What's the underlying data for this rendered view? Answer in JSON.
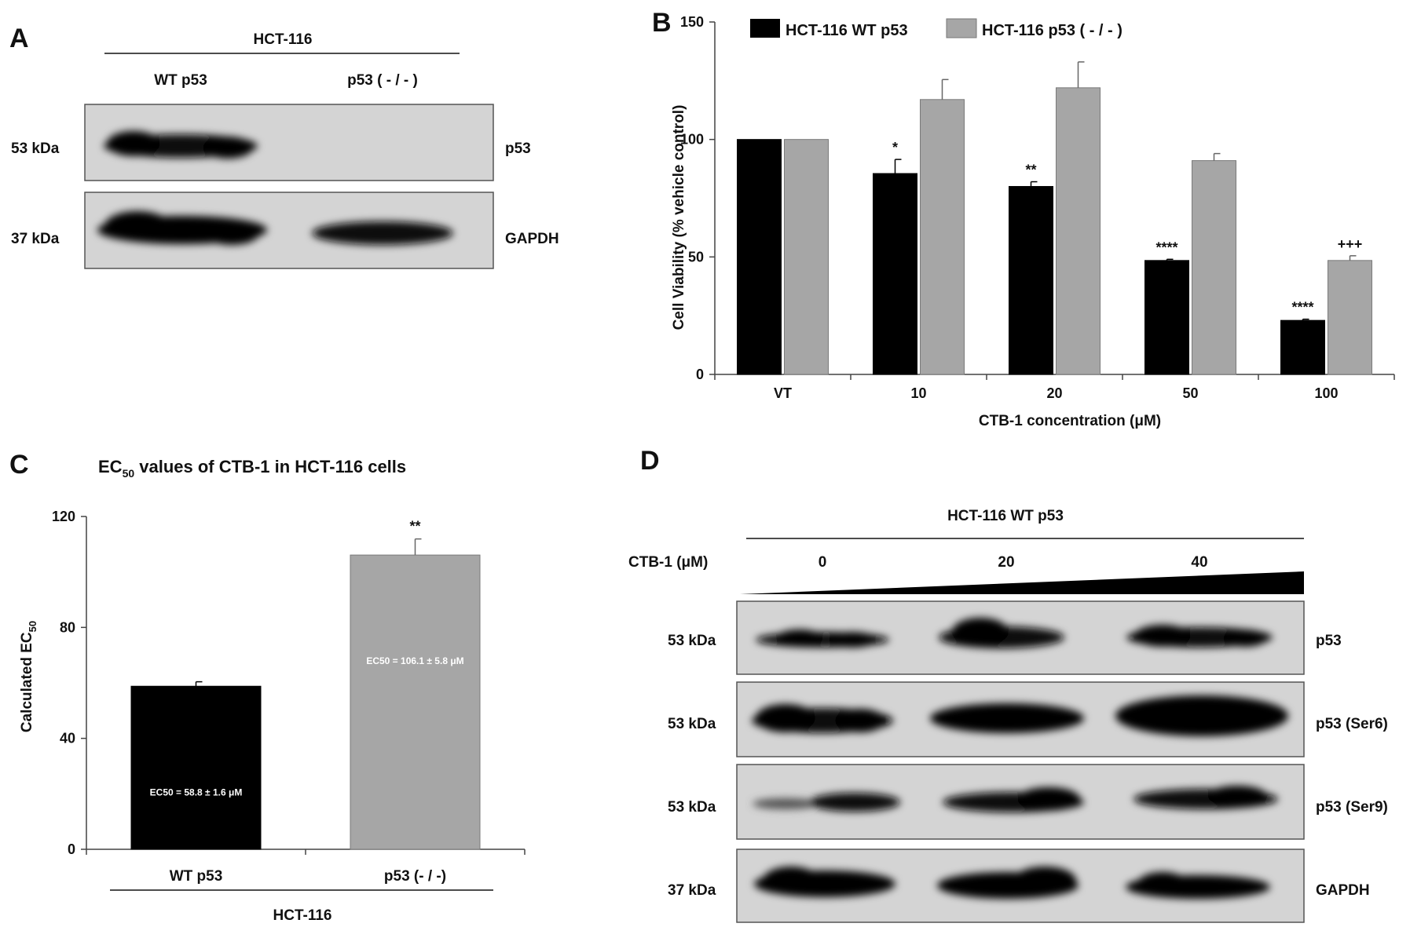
{
  "panel_a": {
    "letter": "A",
    "group_label": "HCT-116",
    "lane_labels": [
      "WT p53",
      "p53 ( - / - )"
    ],
    "rows": [
      {
        "mw": "53 kDa",
        "protein": "p53",
        "bands": [
          1.0,
          0.0
        ]
      },
      {
        "mw": "37 kDa",
        "protein": "GAPDH",
        "bands": [
          1.0,
          0.85
        ]
      }
    ]
  },
  "panel_b": {
    "letter": "B",
    "chart_data": {
      "type": "bar",
      "categories": [
        "VT",
        "10",
        "20",
        "50",
        "100"
      ],
      "series": [
        {
          "name": "HCT-116 WT p53",
          "color": "#000000",
          "values": [
            100,
            85.5,
            80,
            48.5,
            23
          ],
          "errors": [
            0,
            6,
            2,
            0.5,
            0.5
          ],
          "annotations": [
            "",
            "*",
            "**",
            "****",
            "****"
          ]
        },
        {
          "name": "HCT-116 p53 ( - / - )",
          "color": "#a6a6a6",
          "values": [
            100,
            117,
            122,
            91,
            48.5
          ],
          "errors": [
            0,
            8.5,
            11,
            3,
            2
          ],
          "annotations": [
            "",
            "",
            "",
            "",
            "+++"
          ]
        }
      ],
      "xlabel": "CTB-1  concentration (μM)",
      "ylabel": "Cell Viability (% vehicle control)",
      "ylim": [
        0,
        150
      ],
      "yticks": [
        0,
        50,
        100,
        150
      ],
      "legend_position": "top"
    }
  },
  "panel_c": {
    "letter": "C",
    "title_main": "EC",
    "title_sub": "50",
    "title_rest": " values of CTB-1 in HCT-116 cells",
    "group_label": "HCT-116",
    "chart_data": {
      "type": "bar",
      "categories": [
        "WT p53",
        "p53 (- / -)"
      ],
      "values": [
        58.8,
        106.1
      ],
      "errors": [
        1.6,
        5.8
      ],
      "colors": [
        "#000000",
        "#a6a6a6"
      ],
      "annotations": [
        "",
        "**"
      ],
      "bar_labels": [
        "EC50 = 58.8 ± 1.6 μM",
        "EC50 = 106.1 ± 5.8 μM"
      ],
      "ylabel_main": "Calculated EC",
      "ylabel_sub": "50",
      "ylim": [
        0,
        120
      ],
      "yticks": [
        0,
        40,
        80,
        120
      ]
    }
  },
  "panel_d": {
    "letter": "D",
    "group_label": "HCT-116 WT p53",
    "treatment_label": "CTB-1 (μM)",
    "doses": [
      "0",
      "20",
      "40"
    ],
    "rows": [
      {
        "mw": "53 kDa",
        "protein": "p53"
      },
      {
        "mw": "53 kDa",
        "protein": "p53 (Ser6)"
      },
      {
        "mw": "53 kDa",
        "protein": "p53 (Ser9)"
      },
      {
        "mw": "37 kDa",
        "protein": "GAPDH"
      }
    ]
  }
}
